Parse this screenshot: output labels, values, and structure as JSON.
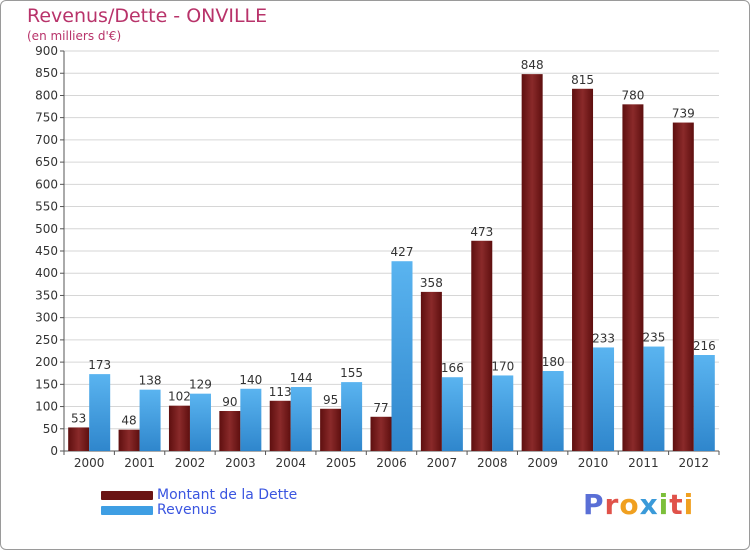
{
  "header": {
    "title": "Revenus/Dette - ONVILLE",
    "subtitle": "(en milliers d'€)"
  },
  "colors": {
    "dette": "#7a1c1c",
    "revenus": "#3e9ee3",
    "title": "#b8336a",
    "legend_text": "#3a55e0"
  },
  "logo": {
    "text": "Proxiti",
    "letters": [
      {
        "ch": "P",
        "color": "#5a6fd6"
      },
      {
        "ch": "r",
        "color": "#e0524a"
      },
      {
        "ch": "o",
        "color": "#f0a020"
      },
      {
        "ch": "x",
        "color": "#3a9ad9"
      },
      {
        "ch": "i",
        "color": "#7cbf3a"
      },
      {
        "ch": "t",
        "color": "#e0524a"
      },
      {
        "ch": "i",
        "color": "#f0a020"
      }
    ]
  },
  "chart_data": {
    "type": "bar",
    "title": "Revenus/Dette - ONVILLE",
    "ylabel": "(en milliers d'€)",
    "xlabel": "",
    "categories": [
      "2000",
      "2001",
      "2002",
      "2003",
      "2004",
      "2005",
      "2006",
      "2007",
      "2008",
      "2009",
      "2010",
      "2011",
      "2012"
    ],
    "series": [
      {
        "name": "Montant de la Dette",
        "values": [
          53,
          48,
          102,
          90,
          113,
          95,
          77,
          358,
          473,
          848,
          815,
          780,
          739
        ]
      },
      {
        "name": "Revenus",
        "values": [
          173,
          138,
          129,
          140,
          144,
          155,
          427,
          166,
          170,
          180,
          233,
          235,
          216
        ]
      }
    ],
    "ylim": [
      0,
      900
    ],
    "yticks": [
      0,
      50,
      100,
      150,
      200,
      250,
      300,
      350,
      400,
      450,
      500,
      550,
      600,
      650,
      700,
      750,
      800,
      850,
      900
    ],
    "grid": true,
    "legend_position": "bottom-left"
  }
}
